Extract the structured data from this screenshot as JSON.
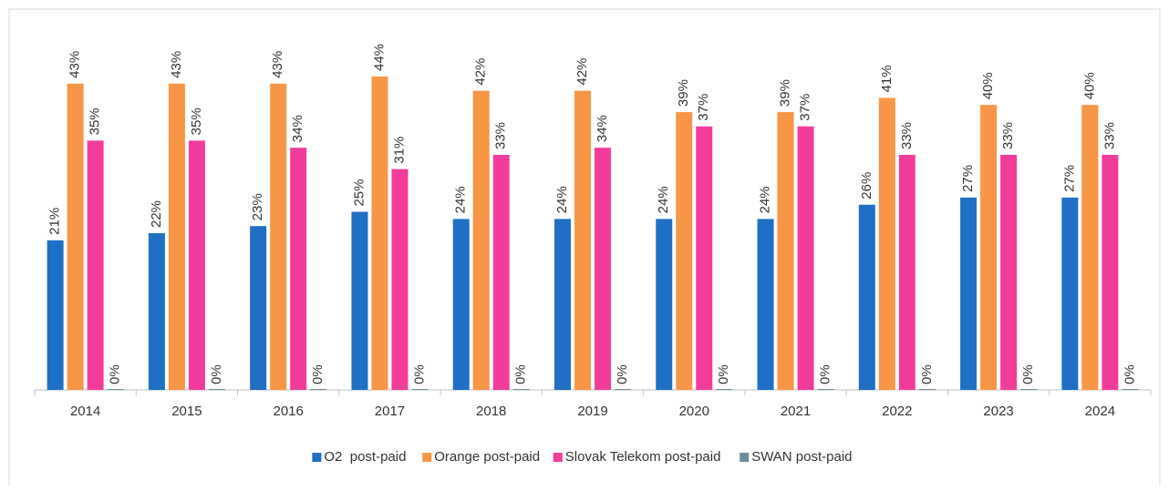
{
  "chart_data": {
    "type": "bar",
    "categories": [
      "2014",
      "2015",
      "2016",
      "2017",
      "2018",
      "2019",
      "2020",
      "2021",
      "2022",
      "2023",
      "2024"
    ],
    "series": [
      {
        "name": "O2  post-paid",
        "color": "#1f6fc5",
        "values": [
          21,
          22,
          23,
          25,
          24,
          24,
          24,
          24,
          26,
          27,
          27
        ],
        "value_labels": [
          "21%",
          "22%",
          "23%",
          "25%",
          "24%",
          "24%",
          "24%",
          "24%",
          "26%",
          "27%",
          "27%"
        ]
      },
      {
        "name": "Orange post-paid",
        "color": "#f79646",
        "values": [
          43,
          43,
          43,
          44,
          42,
          42,
          39,
          39,
          41,
          40,
          40
        ],
        "value_labels": [
          "43%",
          "43%",
          "43%",
          "44%",
          "42%",
          "42%",
          "39%",
          "39%",
          "41%",
          "40%",
          "40%"
        ]
      },
      {
        "name": "Slovak Telekom post-paid",
        "color": "#f23c9b",
        "values": [
          35,
          35,
          34,
          31,
          33,
          34,
          37,
          37,
          33,
          33,
          33
        ],
        "value_labels": [
          "35%",
          "35%",
          "34%",
          "31%",
          "33%",
          "34%",
          "37%",
          "37%",
          "33%",
          "33%",
          "33%"
        ]
      },
      {
        "name": "SWAN post-paid",
        "color": "#6b8e9c",
        "values": [
          0,
          0,
          0,
          0,
          0,
          0,
          0,
          0,
          0,
          0,
          0
        ],
        "value_labels": [
          "0%",
          "0%",
          "0%",
          "0%",
          "0%",
          "0%",
          "0%",
          "0%",
          "0%",
          "0%",
          "0%"
        ]
      }
    ]
  }
}
